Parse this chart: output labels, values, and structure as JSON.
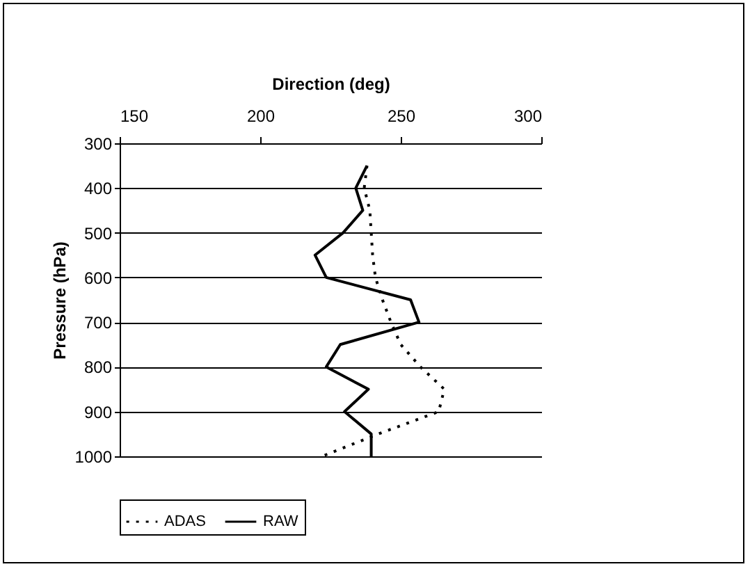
{
  "chart_data": {
    "type": "line",
    "xlabel": "Direction (deg)",
    "ylabel": "Pressure (hPa)",
    "xlim": [
      150,
      300
    ],
    "xticks": [
      150,
      200,
      250,
      300
    ],
    "ylim": [
      1000,
      300
    ],
    "yticks": [
      300,
      400,
      500,
      600,
      700,
      800,
      900,
      1000
    ],
    "grid": "y",
    "legend": "bottom",
    "marker": "none",
    "series": [
      {
        "name": "ADAS",
        "color": "#000000",
        "line_style": "dotted",
        "x": [
          238,
          237,
          239,
          239.5,
          240,
          241,
          243.5,
          246.5,
          250,
          257,
          265.5,
          263.5,
          242,
          222
        ],
        "values": [
          350,
          400,
          450,
          500,
          550,
          600,
          650,
          700,
          750,
          800,
          850,
          900,
          950,
          1000
        ]
      },
      {
        "name": "RAW",
        "color": "#000000",
        "line_style": "solid",
        "x": [
          238,
          234,
          236.5,
          229.5,
          219.5,
          223.5,
          253.5,
          256.5,
          228.5,
          223.5,
          238.5,
          230,
          239.5,
          239.5
        ],
        "values": [
          350,
          400,
          450,
          500,
          550,
          600,
          650,
          700,
          750,
          800,
          850,
          900,
          950,
          1000
        ]
      }
    ]
  }
}
